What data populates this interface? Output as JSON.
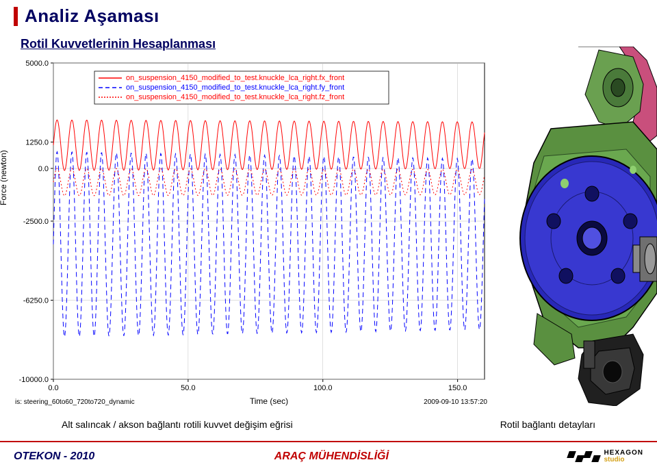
{
  "title": "Analiz Aşaması",
  "subtitle": "Rotil Kuvvetlerinin Hesaplanması",
  "chart": {
    "type": "line",
    "background_color": "#ffffff",
    "grid_color": "#bfbfbf",
    "ylabel": "Force (newton)",
    "xlabel": "Time (sec)",
    "xlim": [
      0,
      160
    ],
    "ylim": [
      -10000,
      5000
    ],
    "xticks": [
      0.0,
      50.0,
      100.0,
      150.0
    ],
    "xtick_labels": [
      "0.0",
      "50.0",
      "100.0",
      "150.0"
    ],
    "yticks": [
      -10000.0,
      -6250.0,
      -2500.0,
      0.0,
      1250.0,
      5000.0
    ],
    "ytick_labels": [
      "-10000.0",
      "-6250.0",
      "-2500.0",
      "0.0",
      "1250.0",
      "5000.0"
    ],
    "label_fontsize": 12,
    "tick_fontsize": 11,
    "series": [
      {
        "name": "on_suspension_4150_modified_to_test.knuckle_lca_right.fx_front",
        "color": "#ff0000",
        "dash": "solid",
        "width": 1,
        "amplitude_center": 1100,
        "amplitude_range": [
          2300,
          -100
        ],
        "period_sec": 5.5,
        "cycles": 29
      },
      {
        "name": "on_suspension_4150_modified_to_test.knuckle_lca_right.fy_front",
        "color": "#0000ff",
        "dash": "dashed",
        "width": 1,
        "amplitude_center": -3500,
        "amplitude_range": [
          800,
          -8000
        ],
        "period_sec": 5.5,
        "cycles": 29
      },
      {
        "name": "on_suspension_4150_modified_to_test.knuckle_lca_right.fz_front",
        "color": "#ff0000",
        "dash": "dotted",
        "width": 1,
        "amplitude_center": -650,
        "amplitude_range": [
          0,
          -1300
        ],
        "period_sec": 5.5,
        "cycles": 29
      }
    ],
    "legend_position": "top-inside",
    "analysis_tag": "is: steering_60to60_720to720_dynamic",
    "timestamp": "2009-09-10 13:57:20"
  },
  "caption_left": "Alt salıncak / akson bağlantı rotili kuvvet değişim eğrisi",
  "caption_right": "Rotil bağlantı detayları",
  "footer": {
    "left": "OTEKON - 2010",
    "center": "ARAÇ MÜHENDİSLİĞİ",
    "logo_top": "HEXAGON",
    "logo_bottom": "studio"
  },
  "cad": {
    "body_color": "#4a7a3a",
    "hub_color": "#3030c0",
    "bolt_color": "#8a8a8a",
    "accent_color": "#c94f7c",
    "bracket_color": "#2a2a2a"
  }
}
